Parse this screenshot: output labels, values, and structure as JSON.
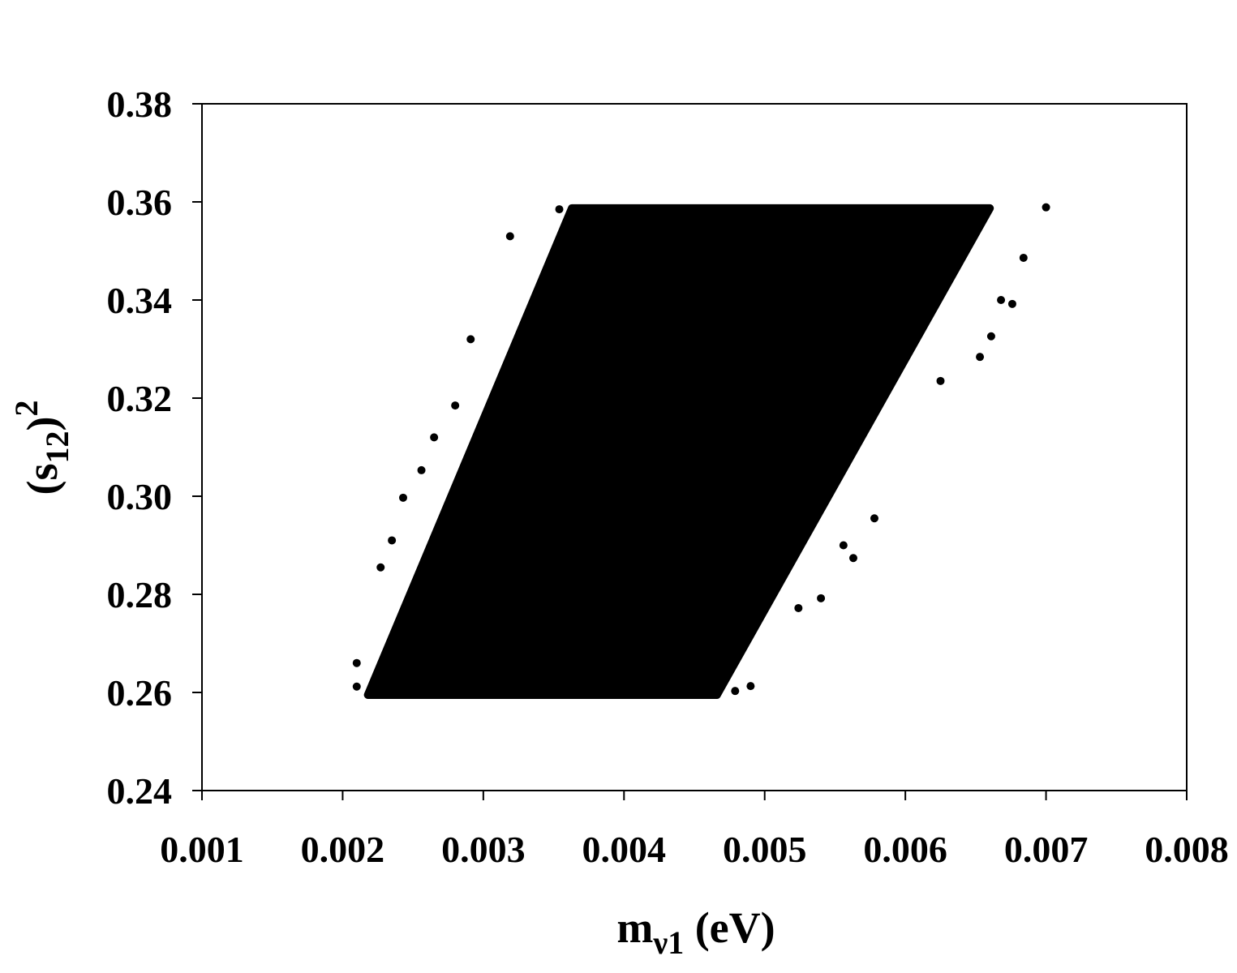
{
  "chart_data": {
    "type": "scatter",
    "color": "#000000",
    "x_label": {
      "main": "m",
      "sub": "ν1",
      "rest": " (eV)"
    },
    "y_label": {
      "open": "(s",
      "sub": "12",
      "close": ")",
      "sup": "2"
    },
    "xlim": [
      0.001,
      0.008
    ],
    "xticks": [
      0.001,
      0.002,
      0.003,
      0.004,
      0.005,
      0.006,
      0.007,
      0.008
    ],
    "ylim": [
      0.24,
      0.38
    ],
    "yticks": [
      0.24,
      0.26,
      0.28,
      {
        "value": 0.3,
        "label": "0.30"
      },
      0.32,
      0.34,
      0.36,
      0.38
    ],
    "region": {
      "x": [
        0.00218,
        0.00466,
        0.0066,
        0.00363
      ],
      "y": [
        0.2595,
        0.2595,
        0.3587,
        0.3587
      ]
    },
    "x": [
      0.0021,
      0.0021,
      0.00235,
      0.00243,
      0.00265,
      0.00291,
      0.00319,
      0.00354,
      0.007,
      0.00684,
      0.00676,
      0.00661,
      0.00653,
      0.00578,
      0.00563,
      0.0054,
      0.00524,
      0.0049,
      0.00479,
      0.00556,
      0.00625,
      0.00668,
      0.00331,
      0.0028,
      0.00256,
      0.00227
    ],
    "y": [
      0.266,
      0.2612,
      0.291,
      0.2997,
      0.312,
      0.332,
      0.353,
      0.3585,
      0.3589,
      0.3486,
      0.3392,
      0.3326,
      0.3284,
      0.2955,
      0.2874,
      0.2792,
      0.2772,
      0.2613,
      0.2603,
      0.29,
      0.3235,
      0.34,
      0.335,
      0.3185,
      0.3053,
      0.2855
    ]
  }
}
